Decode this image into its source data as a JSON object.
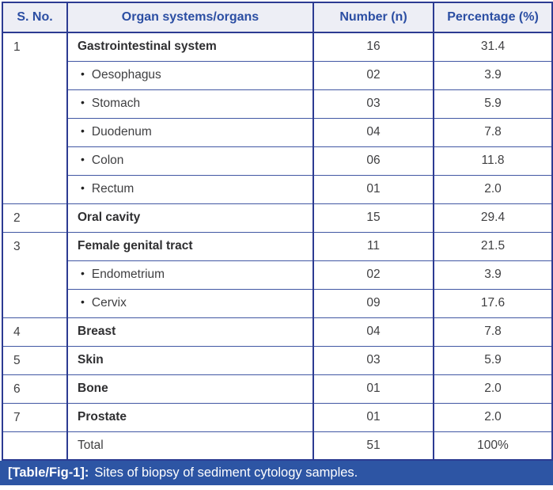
{
  "table": {
    "headers": [
      "S. No.",
      "Organ systems/organs",
      "Number (n)",
      "Percentage (%)"
    ],
    "bullet": "•",
    "rows": [
      {
        "type": "main",
        "sno": "1",
        "organ": "Gastrointestinal system",
        "number": "16",
        "pct": "31.4"
      },
      {
        "type": "sub",
        "sno": "",
        "organ": "Oesophagus",
        "number": "02",
        "pct": "3.9"
      },
      {
        "type": "sub",
        "sno": "",
        "organ": "Stomach",
        "number": "03",
        "pct": "5.9"
      },
      {
        "type": "sub",
        "sno": "",
        "organ": "Duodenum",
        "number": "04",
        "pct": "7.8"
      },
      {
        "type": "sub",
        "sno": "",
        "organ": "Colon",
        "number": "06",
        "pct": "11.8"
      },
      {
        "type": "sub",
        "sno": "",
        "organ": "Rectum",
        "number": "01",
        "pct": "2.0"
      },
      {
        "type": "main",
        "sno": "2",
        "organ": "Oral cavity",
        "number": "15",
        "pct": "29.4"
      },
      {
        "type": "main",
        "sno": "3",
        "organ": "Female genital tract",
        "number": "11",
        "pct": "21.5"
      },
      {
        "type": "sub",
        "sno": "",
        "organ": "Endometrium",
        "number": "02",
        "pct": "3.9"
      },
      {
        "type": "sub",
        "sno": "",
        "organ": "Cervix",
        "number": "09",
        "pct": "17.6"
      },
      {
        "type": "main",
        "sno": "4",
        "organ": "Breast",
        "number": "04",
        "pct": "7.8"
      },
      {
        "type": "main",
        "sno": "5",
        "organ": "Skin",
        "number": "03",
        "pct": "5.9"
      },
      {
        "type": "main",
        "sno": "6",
        "organ": "Bone",
        "number": "01",
        "pct": "2.0"
      },
      {
        "type": "main",
        "sno": "7",
        "organ": "Prostate",
        "number": "01",
        "pct": "2.0"
      },
      {
        "type": "total",
        "sno": "",
        "organ": "Total",
        "number": "51",
        "pct": "100%"
      }
    ]
  },
  "caption": {
    "label": "[Table/Fig-1]:",
    "text": "Sites of biopsy of sediment cytology samples."
  },
  "colors": {
    "border_dark": "#2c3b92",
    "grid_line": "#4157a3",
    "header_text": "#2b4ea3",
    "header_bg": "#edeef5",
    "caption_bg": "#2d55a4",
    "caption_text": "#ffffff",
    "body_text": "#3f3f41",
    "bold_text": "#2f2f31"
  }
}
